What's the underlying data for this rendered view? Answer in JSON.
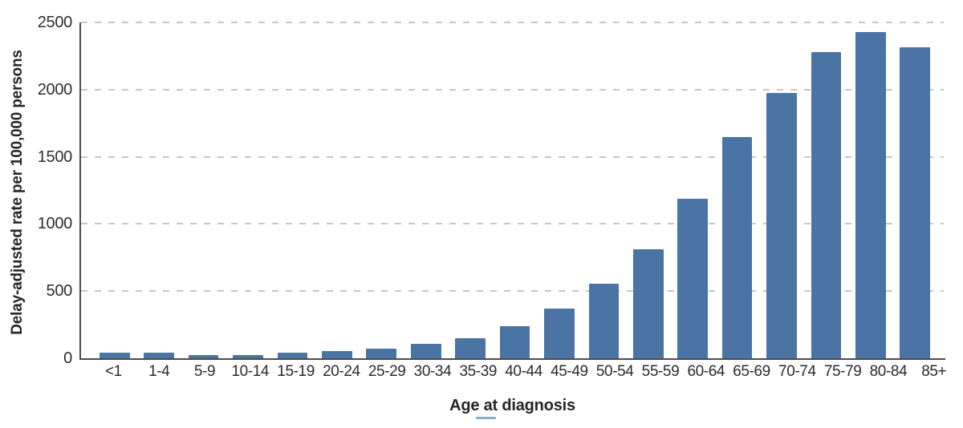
{
  "figure": {
    "background": "#ffffff",
    "bar_color": "#4a74a4",
    "gridline_color": "#c7c7c7",
    "axis_color": "#4c4c4c",
    "text_color": "#2e2e2e",
    "underline_accent_color": "#8caccf"
  },
  "chart_data": {
    "type": "bar",
    "title": "",
    "xlabel": "Age at diagnosis",
    "ylabel": "Delay-adjusted rate per 100,000 persons",
    "categories": [
      "<1",
      "1-4",
      "5-9",
      "10-14",
      "15-19",
      "20-24",
      "25-29",
      "30-34",
      "35-39",
      "40-44",
      "45-49",
      "50-54",
      "55-59",
      "60-64",
      "65-69",
      "70-74",
      "75-79",
      "80-84",
      "85+"
    ],
    "values": [
      40,
      42,
      21,
      26,
      41,
      52,
      70,
      105,
      150,
      240,
      370,
      557,
      810,
      1190,
      1645,
      1975,
      2282,
      2430,
      2316
    ],
    "ylim": [
      0,
      2500
    ],
    "yticks": [
      0,
      500,
      1000,
      1500,
      2000,
      2500
    ],
    "grid": "dashed-horizontal",
    "legend": "none"
  }
}
